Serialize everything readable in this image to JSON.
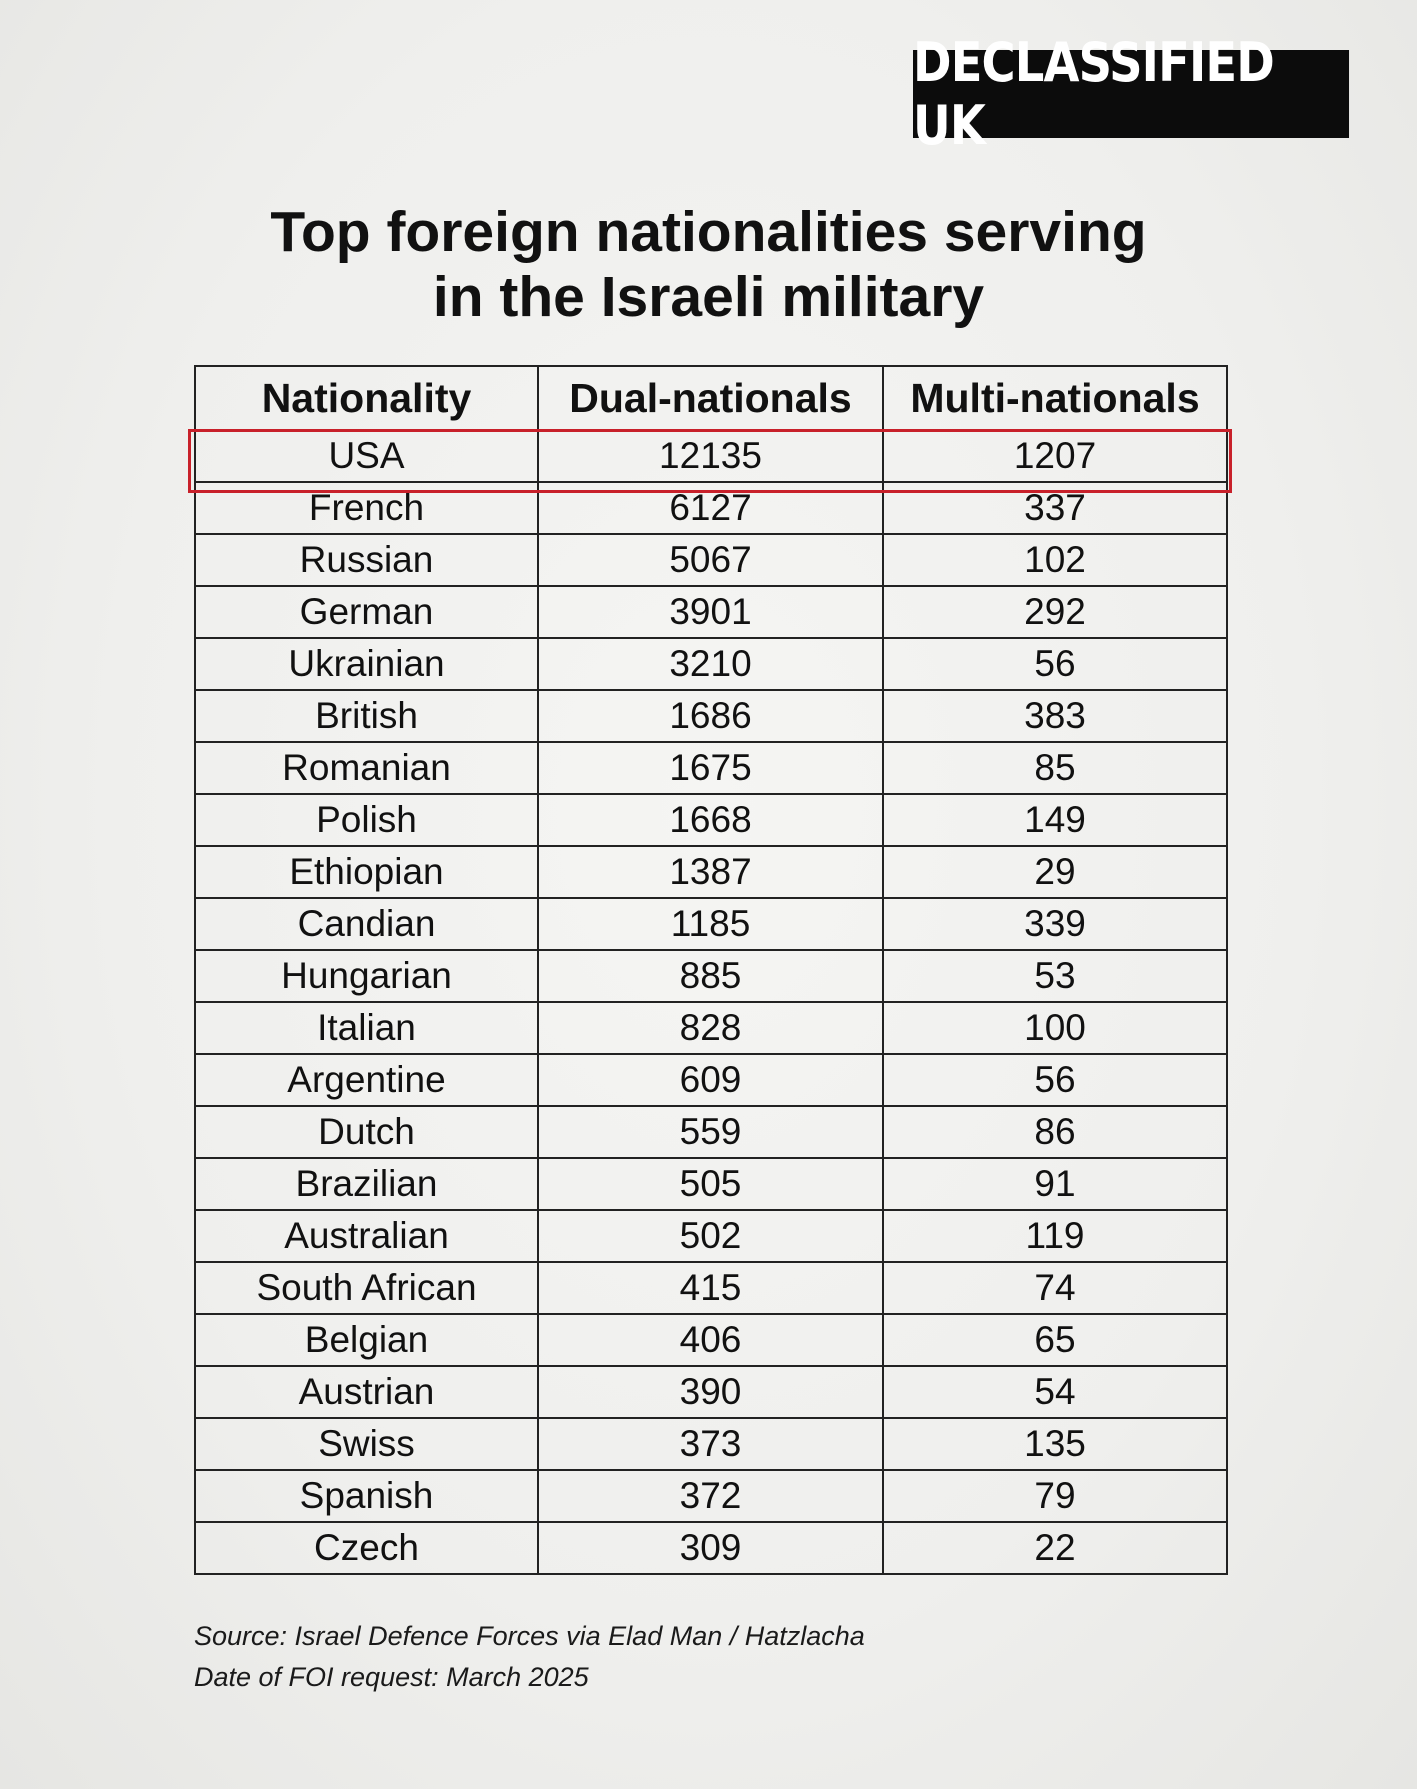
{
  "brand": {
    "logo_text": "DECLASSIFIED UK"
  },
  "chart_data": {
    "type": "table",
    "title_lines": [
      "Top foreign nationalities serving",
      "in the Israeli military"
    ],
    "columns": [
      "Nationality",
      "Dual-nationals",
      "Multi-nationals"
    ],
    "rows": [
      [
        "USA",
        12135,
        1207
      ],
      [
        "French",
        6127,
        337
      ],
      [
        "Russian",
        5067,
        102
      ],
      [
        "German",
        3901,
        292
      ],
      [
        "Ukrainian",
        3210,
        56
      ],
      [
        "British",
        1686,
        383
      ],
      [
        "Romanian",
        1675,
        85
      ],
      [
        "Polish",
        1668,
        149
      ],
      [
        "Ethiopian",
        1387,
        29
      ],
      [
        "Candian",
        1185,
        339
      ],
      [
        "Hungarian",
        885,
        53
      ],
      [
        "Italian",
        828,
        100
      ],
      [
        "Argentine",
        609,
        56
      ],
      [
        "Dutch",
        559,
        86
      ],
      [
        "Brazilian",
        505,
        91
      ],
      [
        "Australian",
        502,
        119
      ],
      [
        "South African",
        415,
        74
      ],
      [
        "Belgian",
        406,
        65
      ],
      [
        "Austrian",
        390,
        54
      ],
      [
        "Swiss",
        373,
        135
      ],
      [
        "Spanish",
        372,
        79
      ],
      [
        "Czech",
        309,
        22
      ]
    ],
    "highlighted_row": "USA",
    "highlight_color": "#c8202a"
  },
  "footer": {
    "source": "Source: Israel Defence Forces via Elad Man / Hatzlacha",
    "date": "Date of FOI request: March 2025"
  }
}
